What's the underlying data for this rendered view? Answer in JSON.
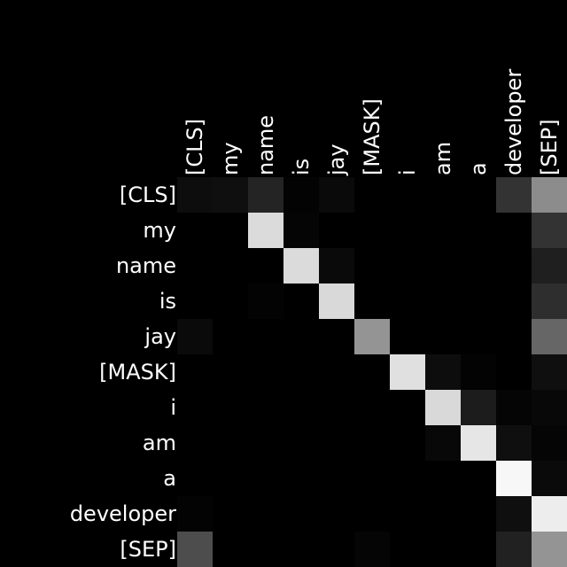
{
  "chart_data": {
    "type": "heatmap",
    "title": "",
    "xlabel": "",
    "ylabel": "",
    "x_labels": [
      "[CLS]",
      "my",
      "name",
      "is",
      "jay",
      "[MASK]",
      "i",
      "am",
      "a",
      "developer",
      "[SEP]"
    ],
    "y_labels": [
      "[CLS]",
      "my",
      "name",
      "is",
      "jay",
      "[MASK]",
      "i",
      "am",
      "a",
      "developer",
      "[SEP]"
    ],
    "colormap": "grayscale",
    "value_range": [
      0,
      1
    ],
    "grid": false,
    "values": [
      [
        0.05,
        0.06,
        0.14,
        0.01,
        0.04,
        0.0,
        0.0,
        0.0,
        0.0,
        0.2,
        0.55
      ],
      [
        0.0,
        0.0,
        0.86,
        0.02,
        0.0,
        0.0,
        0.0,
        0.0,
        0.0,
        0.0,
        0.2
      ],
      [
        0.0,
        0.0,
        0.0,
        0.86,
        0.04,
        0.0,
        0.0,
        0.0,
        0.0,
        0.0,
        0.12
      ],
      [
        0.0,
        0.0,
        0.01,
        0.0,
        0.85,
        0.0,
        0.0,
        0.0,
        0.0,
        0.0,
        0.18
      ],
      [
        0.04,
        0.0,
        0.0,
        0.0,
        0.0,
        0.58,
        0.0,
        0.0,
        0.0,
        0.0,
        0.4
      ],
      [
        0.0,
        0.0,
        0.0,
        0.0,
        0.0,
        0.0,
        0.88,
        0.05,
        0.01,
        0.0,
        0.06
      ],
      [
        0.0,
        0.0,
        0.0,
        0.0,
        0.0,
        0.0,
        0.0,
        0.85,
        0.11,
        0.02,
        0.03
      ],
      [
        0.0,
        0.0,
        0.0,
        0.0,
        0.0,
        0.0,
        0.0,
        0.03,
        0.9,
        0.06,
        0.02
      ],
      [
        0.0,
        0.0,
        0.0,
        0.0,
        0.0,
        0.0,
        0.0,
        0.0,
        0.0,
        0.97,
        0.04
      ],
      [
        0.01,
        0.0,
        0.0,
        0.0,
        0.0,
        0.0,
        0.0,
        0.0,
        0.0,
        0.06,
        0.93
      ],
      [
        0.3,
        0.0,
        0.0,
        0.0,
        0.0,
        0.02,
        0.0,
        0.0,
        0.0,
        0.13,
        0.58
      ]
    ]
  }
}
